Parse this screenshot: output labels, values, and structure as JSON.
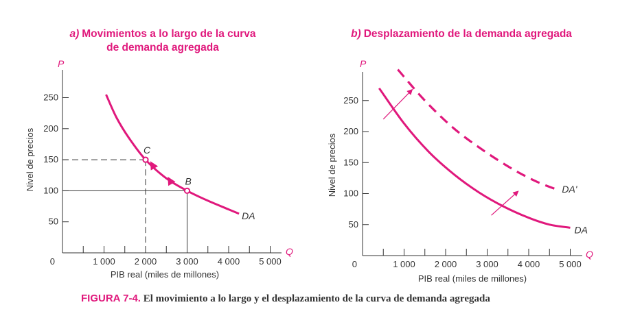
{
  "colors": {
    "accent": "#e0187c",
    "ink": "#333333"
  },
  "caption": {
    "figure_number": "FIGURA 7-4.",
    "text": "El movimiento a lo largo y el desplazamiento de la curva de demanda agregada"
  },
  "chart_data": [
    {
      "type": "line",
      "title_prefix": "a)",
      "title_line1": "Movimientos a lo largo de la curva",
      "title_line2": "de demanda agregada",
      "xlabel": "PIB real (miles de millones)",
      "ylabel": "Nivel de precios",
      "x_axis_letter": "Q",
      "y_axis_letter": "P",
      "xlim": [
        0,
        5000
      ],
      "ylim": [
        0,
        280
      ],
      "x_ticks": [
        1000,
        2000,
        3000,
        4000,
        5000
      ],
      "x_tick_labels": [
        "1 000",
        "2 000",
        "3 000",
        "4 000",
        "5 000"
      ],
      "y_ticks": [
        50,
        100,
        150,
        200,
        250
      ],
      "y_tick_labels": [
        "50",
        "100",
        "150",
        "200",
        "250"
      ],
      "origin_label": "0",
      "grid": false,
      "series": [
        {
          "name": "DA",
          "style": "solid",
          "x": [
            1050,
            1300,
            1600,
            2000,
            2500,
            3000,
            3500,
            4000,
            4250
          ],
          "y": [
            255,
            218,
            185,
            150,
            120,
            100,
            84,
            70,
            63
          ]
        }
      ],
      "points": [
        {
          "label": "C",
          "x": 2000,
          "y": 150
        },
        {
          "label": "B",
          "x": 3000,
          "y": 100
        }
      ],
      "movement_arrows": [
        {
          "x": 2600,
          "y": 115
        },
        {
          "x": 2180,
          "y": 140
        }
      ]
    },
    {
      "type": "line",
      "title_prefix": "b)",
      "title_line1": "Desplazamiento de la demanda agregada",
      "xlabel": "PIB real (miles de millones)",
      "ylabel": "Nivel de precios",
      "x_axis_letter": "Q",
      "y_axis_letter": "P",
      "xlim": [
        0,
        5000
      ],
      "ylim": [
        0,
        280
      ],
      "x_ticks": [
        1000,
        2000,
        3000,
        4000,
        5000
      ],
      "x_tick_labels": [
        "1 000",
        "2 000",
        "3 000",
        "4 000",
        "5 000"
      ],
      "y_ticks": [
        50,
        100,
        150,
        200,
        250
      ],
      "y_tick_labels": [
        "50",
        "100",
        "150",
        "200",
        "250"
      ],
      "origin_label": "0",
      "grid": false,
      "series": [
        {
          "name": "DA",
          "style": "solid",
          "x": [
            400,
            1000,
            1600,
            2200,
            2800,
            3400,
            4000,
            4500,
            5000
          ],
          "y": [
            270,
            213,
            167,
            131,
            102,
            79,
            61,
            50,
            45
          ]
        },
        {
          "name": "DA'",
          "style": "dashed",
          "x": [
            850,
            1500,
            2200,
            2900,
            3600,
            4200,
            4700
          ],
          "y": [
            300,
            250,
            205,
            170,
            140,
            119,
            106
          ]
        }
      ],
      "shift_arrows": [
        {
          "from": [
            500,
            220
          ],
          "to": [
            1200,
            268
          ]
        },
        {
          "from": [
            3100,
            65
          ],
          "to": [
            3750,
            104
          ]
        }
      ]
    }
  ]
}
